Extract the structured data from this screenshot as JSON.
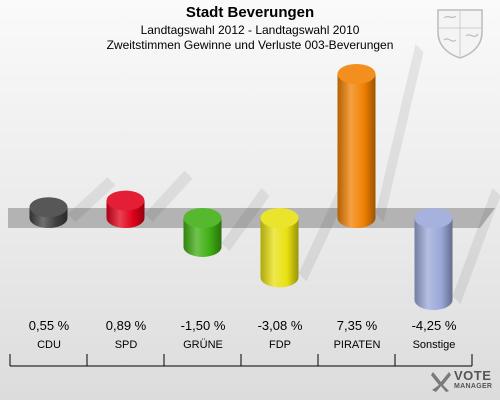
{
  "header": {
    "title": "Stadt Beverungen",
    "subtitle1": "Landtagswahl 2012 - Landtagswahl 2010",
    "subtitle2": "Zweitstimmen Gewinne und Verluste 003-Beverungen"
  },
  "brand": {
    "line1": "VOTE",
    "line2": "MANAGER"
  },
  "chart_data": {
    "type": "bar",
    "title": "Stadt Beverungen",
    "categories": [
      "CDU",
      "SPD",
      "GRÜNE",
      "FDP",
      "PIRATEN",
      "Sonstige"
    ],
    "values": [
      0.55,
      0.89,
      -1.5,
      -3.08,
      7.35,
      -4.25
    ],
    "value_labels": [
      "0,55 %",
      "0,89 %",
      "-1,50 %",
      "-3,08 %",
      "7,35 %",
      "-4,25 %"
    ],
    "colors": [
      "#404040",
      "#e0001a",
      "#3fae12",
      "#e8e010",
      "#f08000",
      "#9aa8d8"
    ],
    "ylim": [
      -4.25,
      7.35
    ],
    "grid": false,
    "legend": "none"
  }
}
